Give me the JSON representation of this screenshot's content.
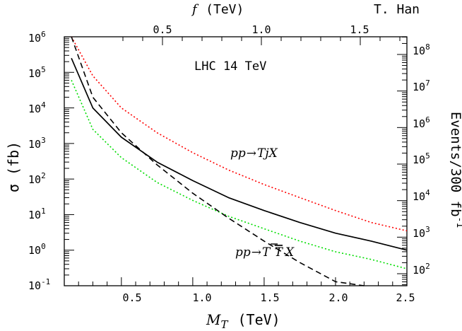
{
  "chart_data": {
    "type": "line",
    "author": "T. Han",
    "annotation": "LHC 14 TeV",
    "xlabel": "M",
    "xlabel_sub": "T",
    "xlabel_unit": "(TeV)",
    "ylabel": "σ (fb)",
    "top_axis_label": "f",
    "top_axis_unit": "(TeV)",
    "right_axis_label": "Events/300 fb",
    "right_axis_sup": "-1",
    "xlim": [
      0.1,
      2.5
    ],
    "ylim": [
      0.1,
      1000000
    ],
    "ylog": true,
    "x_ticks": [
      "0.5",
      "1.0",
      "1.5",
      "2.0",
      "2.5"
    ],
    "y_ticks": [
      {
        "base": "10",
        "exp": "-1"
      },
      {
        "base": "10",
        "exp": "0"
      },
      {
        "base": "10",
        "exp": "1"
      },
      {
        "base": "10",
        "exp": "2"
      },
      {
        "base": "10",
        "exp": "3"
      },
      {
        "base": "10",
        "exp": "4"
      },
      {
        "base": "10",
        "exp": "5"
      },
      {
        "base": "10",
        "exp": "6"
      }
    ],
    "top_ticks": [
      {
        "label": "0.5",
        "x": 0.5
      },
      {
        "label": "1.0",
        "x": 1.0
      },
      {
        "label": "1.5",
        "x": 1.5
      }
    ],
    "right_ticks": [
      {
        "base": "10",
        "exp": "2"
      },
      {
        "base": "10",
        "exp": "3"
      },
      {
        "base": "10",
        "exp": "4"
      },
      {
        "base": "10",
        "exp": "5"
      },
      {
        "base": "10",
        "exp": "6"
      },
      {
        "base": "10",
        "exp": "7"
      },
      {
        "base": "10",
        "exp": "8"
      }
    ],
    "label_TjX": {
      "pre": "pp",
      "post": "TjX"
    },
    "label_TTX": {
      "pre": "pp",
      "post": "T",
      "bar": "T",
      "end": "X"
    },
    "series": [
      {
        "id": "TjX-red",
        "color": "#ff0000",
        "style": "dotted",
        "x": [
          0.15,
          0.3,
          0.5,
          0.75,
          1.0,
          1.25,
          1.5,
          1.75,
          2.0,
          2.25,
          2.5
        ],
        "y": [
          1000000,
          80000,
          10000,
          2000,
          550,
          180,
          70,
          30,
          13,
          6,
          3.5
        ]
      },
      {
        "id": "total-black",
        "color": "#000000",
        "style": "solid",
        "x": [
          0.15,
          0.3,
          0.5,
          0.75,
          1.0,
          1.25,
          1.5,
          1.75,
          2.0,
          2.25,
          2.5
        ],
        "y": [
          250000,
          10000,
          1500,
          300,
          90,
          30,
          13,
          6,
          3,
          1.8,
          1
        ]
      },
      {
        "id": "TTX-green",
        "color": "#00dd00",
        "style": "dotted",
        "x": [
          0.15,
          0.3,
          0.5,
          0.75,
          1.0,
          1.25,
          1.5,
          1.75,
          2.0,
          2.25,
          2.5
        ],
        "y": [
          60000,
          2500,
          400,
          80,
          25,
          9,
          4,
          1.8,
          0.9,
          0.55,
          0.3
        ]
      },
      {
        "id": "TTbar-dashed",
        "color": "#000000",
        "style": "dashed",
        "x": [
          0.15,
          0.3,
          0.5,
          0.75,
          1.0,
          1.25,
          1.5,
          1.75,
          2.0,
          2.2
        ],
        "y": [
          1000000,
          20000,
          2000,
          250,
          40,
          8,
          1.8,
          0.45,
          0.13,
          0.1
        ]
      }
    ]
  }
}
